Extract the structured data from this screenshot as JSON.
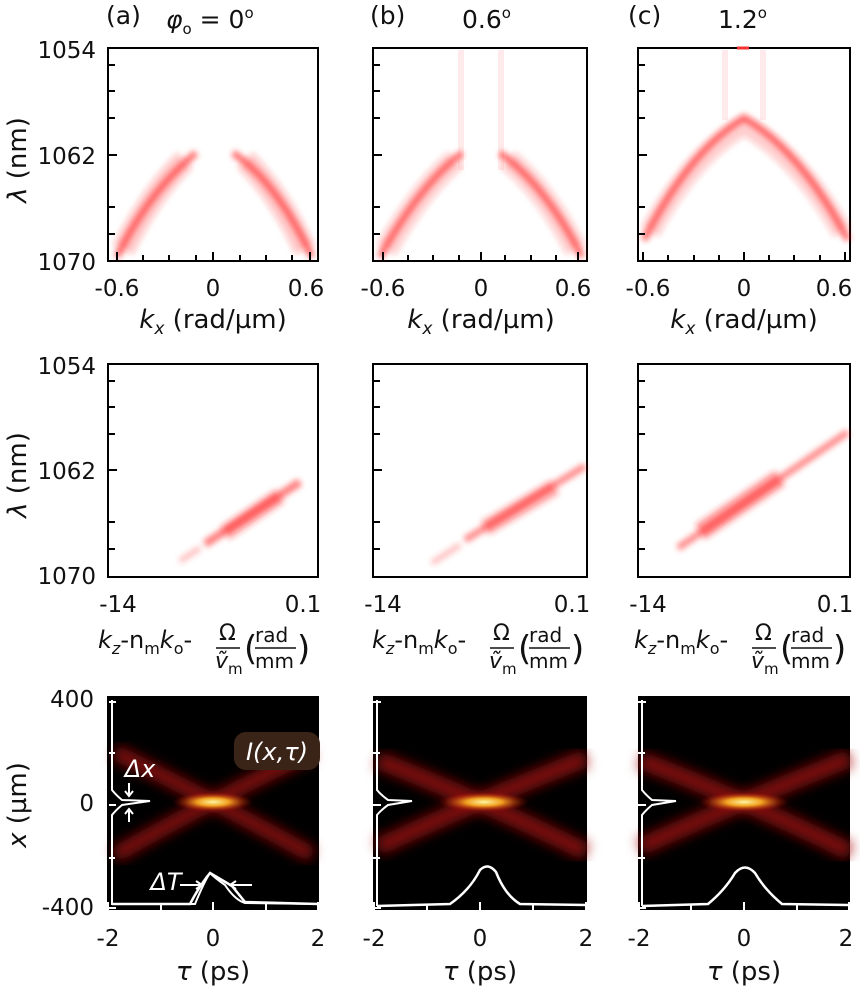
{
  "panel_labels": [
    "(a)",
    "(b)",
    "(c)"
  ],
  "angles": {
    "a_symbol": "φ",
    "a_sub": "o",
    "a_eq": " = 0",
    "a_deg": "o",
    "b": "0.6",
    "b_deg": "o",
    "c": "1.2",
    "c_deg": "o"
  },
  "row1": {
    "ylabel_sym": "λ",
    "ylabel_unit": " (nm)",
    "yticks": [
      "1054",
      "1062",
      "1070"
    ],
    "xticks": [
      "-0.6",
      "0",
      "0.6"
    ],
    "xlabel_sym": "k",
    "xlabel_sub": "x",
    "xlabel_unit": " (rad/µm)"
  },
  "row2": {
    "ylabel_sym": "λ",
    "ylabel_unit": " (nm)",
    "yticks": [
      "1054",
      "1062",
      "1070"
    ],
    "xticks": [
      "-14",
      "0.1"
    ],
    "xlabel_parts": {
      "k": "k",
      "z": "z",
      "minus_n": "-n",
      "m1": "m",
      "k2": "k",
      "o": "o",
      "minus": "-",
      "Omega": "Ω",
      "v": "ṽ",
      "m2": "m",
      "unit_num": "rad",
      "unit_den": "mm"
    }
  },
  "row3": {
    "ylabel_sym": "x",
    "ylabel_unit": " (µm)",
    "yticks": [
      "400",
      "0",
      "-400"
    ],
    "xticks": [
      "-2",
      "-1",
      "0",
      "1",
      "2"
    ],
    "xlabel_sym": "τ",
    "xlabel_unit": " (ps)",
    "intensity_label": "I(x,τ)",
    "delta_x": "Δx",
    "delta_t": "ΔT"
  },
  "chart_data": [
    {
      "panel": "a-top",
      "type": "heatmap",
      "x_label": "k_x (rad/µm)",
      "y_label": "λ (nm)",
      "x_range": [
        -0.6,
        0.6
      ],
      "y_range": [
        1070,
        1054
      ],
      "curve": {
        "x": [
          -0.55,
          -0.4,
          -0.25,
          -0.1,
          0.1,
          0.25,
          0.4,
          0.55
        ],
        "y": [
          1069.5,
          1066.5,
          1064,
          1062.4,
          1062.4,
          1064,
          1066.5,
          1069.5
        ]
      }
    },
    {
      "panel": "b-top",
      "type": "heatmap",
      "x_label": "k_x (rad/µm)",
      "y_label": "λ (nm)",
      "x_range": [
        -0.6,
        0.6
      ],
      "y_range": [
        1070,
        1054
      ],
      "curve": {
        "x": [
          -0.58,
          -0.45,
          -0.3,
          -0.12,
          0.12,
          0.3,
          0.45,
          0.58
        ],
        "y": [
          1069.5,
          1066.5,
          1064,
          1062.2,
          1062.2,
          1064,
          1066.5,
          1069.5
        ]
      }
    },
    {
      "panel": "c-top",
      "type": "heatmap",
      "x_label": "k_x (rad/µm)",
      "y_label": "λ (nm)",
      "x_range": [
        -0.6,
        0.6
      ],
      "y_range": [
        1070,
        1054
      ],
      "curve": {
        "x": [
          -0.6,
          -0.45,
          -0.3,
          -0.15,
          0,
          0.15,
          0.3,
          0.45,
          0.6
        ],
        "y": [
          1068.8,
          1064.8,
          1062.1,
          1060.5,
          1060,
          1060.5,
          1062.1,
          1064.8,
          1068.8
        ]
      }
    },
    {
      "panel": "a-mid",
      "type": "heatmap",
      "x_label": "k_z-n_m k_o-Ω/ṽ_m (rad/mm)",
      "y_label": "λ (nm)",
      "x_range": [
        -14,
        0.1
      ],
      "y_range": [
        1070,
        1054
      ],
      "line": {
        "x": [
          -9.4,
          -1.2
        ],
        "y": [
          1069.2,
          1063.2
        ]
      }
    },
    {
      "panel": "b-mid",
      "type": "heatmap",
      "x_label": "k_z-n_m k_o-Ω/ṽ_m (rad/mm)",
      "y_label": "λ (nm)",
      "x_range": [
        -14,
        0.1
      ],
      "y_range": [
        1070,
        1054
      ],
      "line": {
        "x": [
          -10,
          0.1
        ],
        "y": [
          1069.2,
          1061.6
        ]
      }
    },
    {
      "panel": "c-mid",
      "type": "heatmap",
      "x_label": "k_z-n_m k_o-Ω/ṽ_m (rad/mm)",
      "y_label": "λ (nm)",
      "x_range": [
        -14,
        0.1
      ],
      "y_range": [
        1070,
        1054
      ],
      "line": {
        "x": [
          -11.3,
          0.1
        ],
        "y": [
          1068.7,
          1059.5
        ]
      }
    },
    {
      "panel": "a-bottom",
      "type": "heatmap",
      "x_label": "τ (ps)",
      "y_label": "x (µm)",
      "x_range": [
        -2,
        2
      ],
      "y_range": [
        -400,
        400
      ],
      "x_profile_peak": 0,
      "t_profile_peak": 0
    },
    {
      "panel": "b-bottom",
      "type": "heatmap",
      "x_label": "τ (ps)",
      "y_label": "x (µm)",
      "x_range": [
        -2,
        2
      ],
      "y_range": [
        -400,
        400
      ],
      "x_profile_peak": 0,
      "t_profile_peak": 0.1
    },
    {
      "panel": "c-bottom",
      "type": "heatmap",
      "x_label": "τ (ps)",
      "y_label": "x (µm)",
      "x_range": [
        -2,
        2
      ],
      "y_range": [
        -400,
        400
      ],
      "x_profile_peak": 0,
      "t_profile_peak": 0
    }
  ]
}
